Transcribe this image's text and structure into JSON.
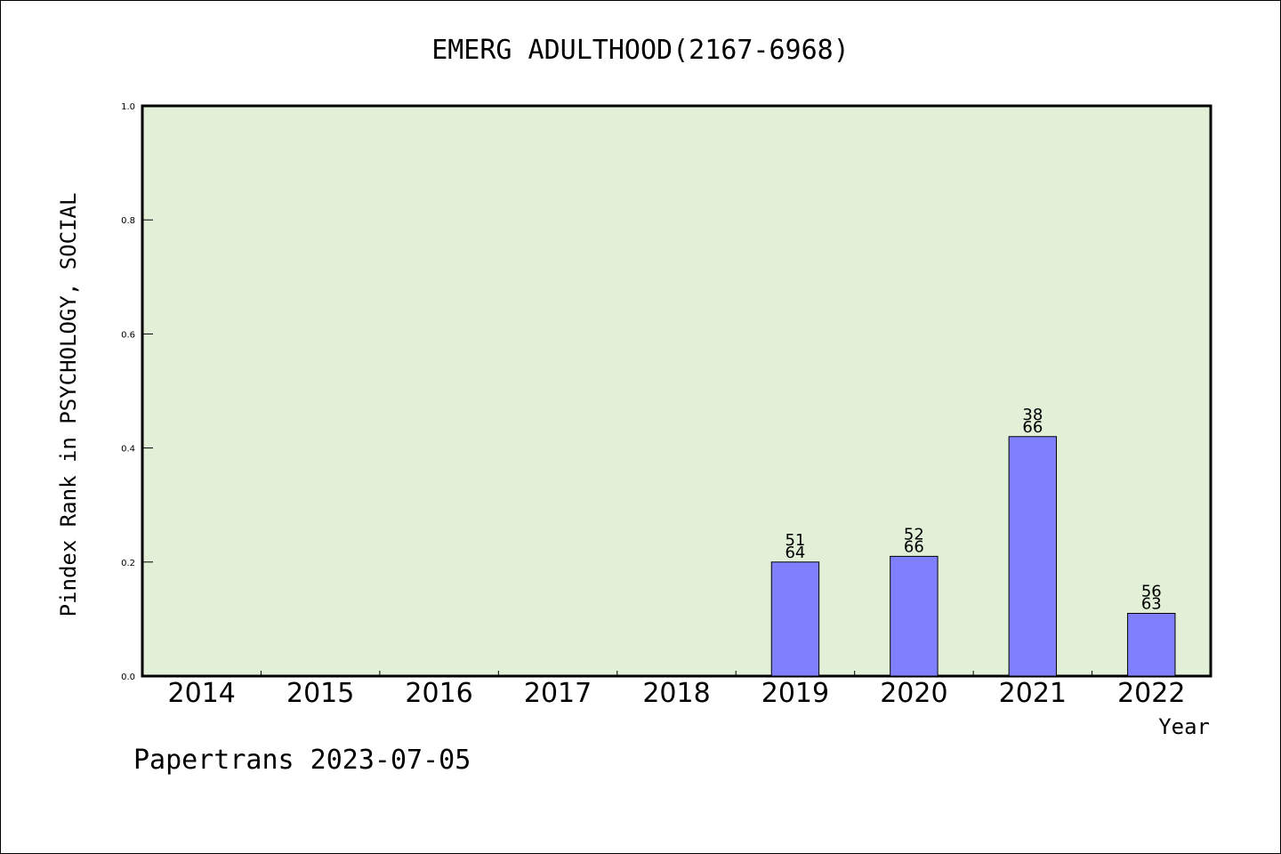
{
  "chart_data": {
    "type": "bar",
    "title": "EMERG ADULTHOOD(2167-6968)",
    "xlabel": "Year",
    "ylabel": "Pindex Rank in PSYCHOLOGY, SOCIAL",
    "categories": [
      "2014",
      "2015",
      "2016",
      "2017",
      "2018",
      "2019",
      "2020",
      "2021",
      "2022"
    ],
    "values": [
      null,
      null,
      null,
      null,
      null,
      0.2,
      0.21,
      0.42,
      0.11
    ],
    "bar_labels": [
      null,
      null,
      null,
      null,
      null,
      {
        "rank": "51",
        "total": "64"
      },
      {
        "rank": "52",
        "total": "66"
      },
      {
        "rank": "38",
        "total": "66"
      },
      {
        "rank": "56",
        "total": "63"
      }
    ],
    "ylim": [
      0,
      1.0
    ],
    "yticks": [
      "0.0",
      "0.2",
      "0.4",
      "0.6",
      "0.8",
      "1.0"
    ],
    "grid": false,
    "colors": {
      "plot_background": "#e1f0d6",
      "bar_fill": "#8080ff",
      "bar_stroke": "#000000",
      "axis": "#000000"
    }
  },
  "footer": "Papertrans 2023-07-05"
}
